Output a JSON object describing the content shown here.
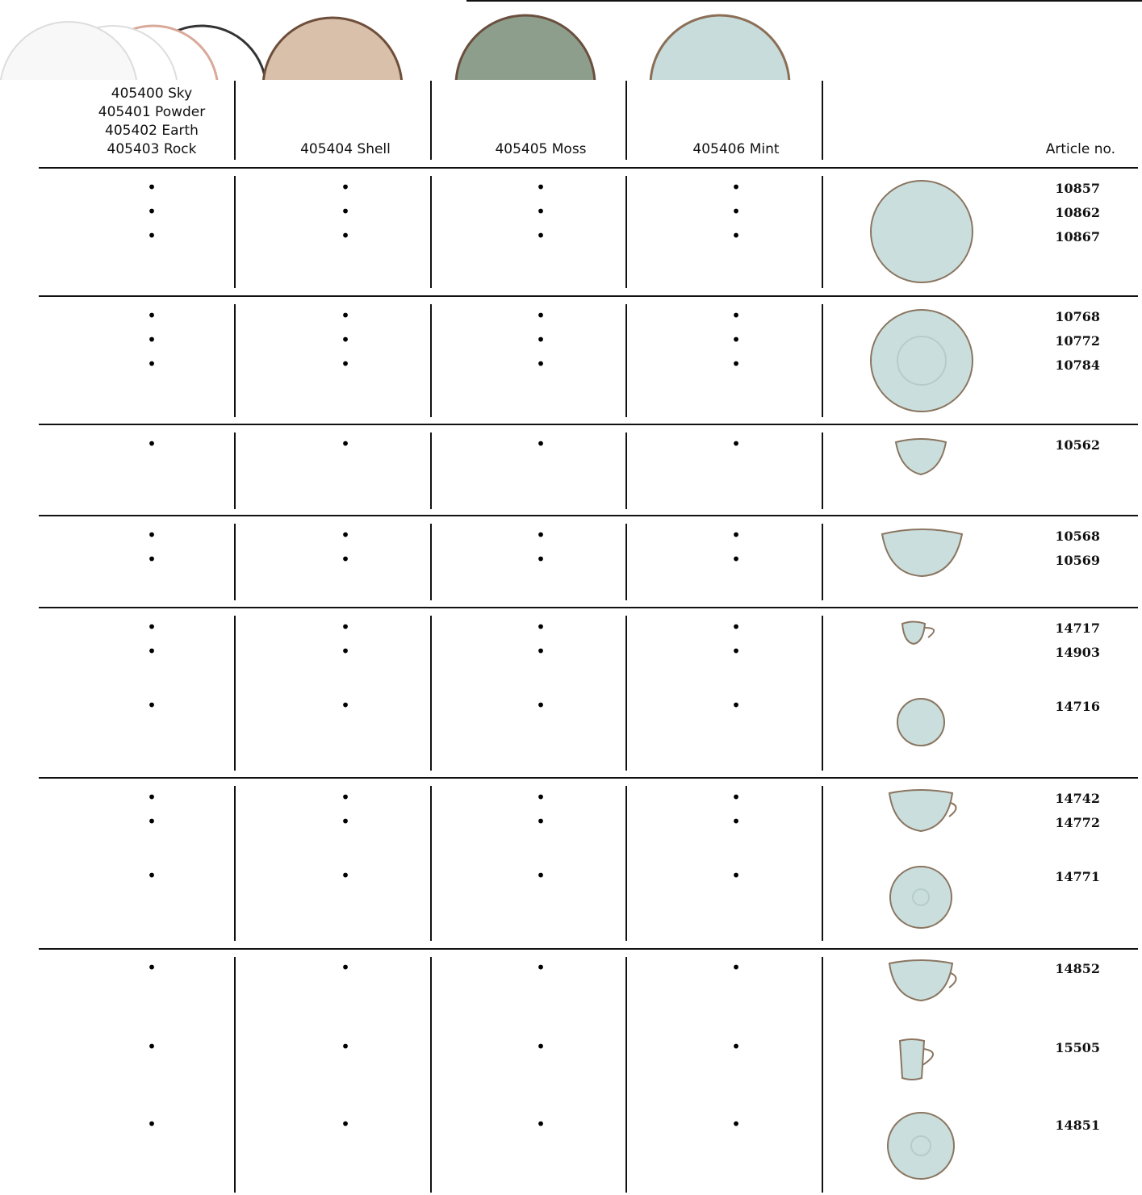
{
  "table": {
    "color_columns": [
      [
        "405400 Sky",
        "405401 Powder",
        "405402 Earth",
        "405403 Rock"
      ],
      [
        "405404 Shell"
      ],
      [
        "405405 Moss"
      ],
      [
        "405406 Mint"
      ]
    ],
    "article_header": "Article no.",
    "groups": [
      {
        "items": [
          {
            "marks": [
              "•",
              "•",
              "•",
              "•"
            ],
            "article": "10857"
          },
          {
            "marks": [
              "•",
              "•",
              "•",
              "•"
            ],
            "article": "10862"
          },
          {
            "marks": [
              "•",
              "•",
              "•",
              "•"
            ],
            "article": "10867"
          }
        ]
      },
      {
        "items": [
          {
            "marks": [
              "•",
              "•",
              "•",
              "•"
            ],
            "article": "10768"
          },
          {
            "marks": [
              "•",
              "•",
              "•",
              "•"
            ],
            "article": "10772"
          },
          {
            "marks": [
              "•",
              "•",
              "•",
              "•"
            ],
            "article": "10784"
          }
        ]
      },
      {
        "items": [
          {
            "marks": [
              "•",
              "•",
              "•",
              "•"
            ],
            "article": "10562"
          }
        ]
      },
      {
        "items": [
          {
            "marks": [
              "•",
              "•",
              "•",
              "•"
            ],
            "article": "10568"
          },
          {
            "marks": [
              "•",
              "•",
              "•",
              "•"
            ],
            "article": "10569"
          }
        ]
      },
      {
        "items": [
          {
            "marks": [
              "•",
              "•",
              "•",
              "•"
            ],
            "article": "14717"
          },
          {
            "marks": [
              "•",
              "•",
              "•",
              "•"
            ],
            "article": "14903"
          },
          {
            "marks": [
              "•",
              "•",
              "•",
              "•"
            ],
            "article": "14716"
          }
        ]
      },
      {
        "items": [
          {
            "marks": [
              "•",
              "•",
              "•",
              "•"
            ],
            "article": "14742"
          },
          {
            "marks": [
              "•",
              "•",
              "•",
              "•"
            ],
            "article": "14772"
          },
          {
            "marks": [
              "•",
              "•",
              "•",
              "•"
            ],
            "article": "14771"
          }
        ]
      },
      {
        "items": [
          {
            "marks": [
              "•",
              "•",
              "•",
              "•"
            ],
            "article": "14852"
          },
          {
            "marks": [
              "•",
              "•",
              "•",
              "•"
            ],
            "article": "15505"
          },
          {
            "marks": [
              "•",
              "•",
              "•",
              "•"
            ],
            "article": "14851"
          }
        ]
      }
    ]
  }
}
